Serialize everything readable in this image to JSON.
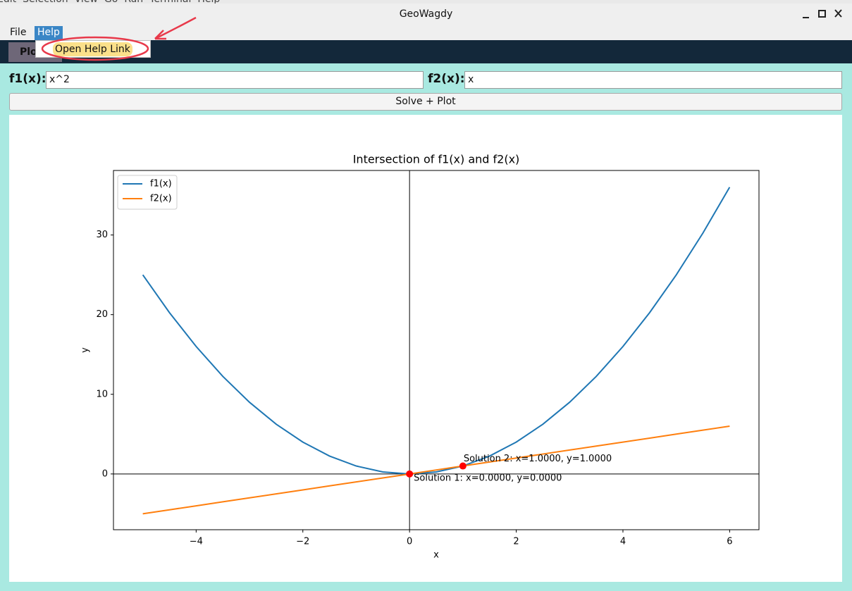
{
  "background_menu": [
    "Edit",
    "Selection",
    "View",
    "Go",
    "Run",
    "Terminal",
    "Help"
  ],
  "window": {
    "title": "GeoWagdy"
  },
  "menu": [
    "File",
    "Help"
  ],
  "dropdown": [
    "Open Help Link"
  ],
  "tab": "Plot",
  "inputs": [
    {
      "label": "f1(x):",
      "value": "x^2"
    },
    {
      "label": "f2(x):",
      "value": "x"
    }
  ],
  "button": "Solve + Plot",
  "chart_data": {
    "type": "line",
    "title": "Intersection of f1(x) and f2(x)",
    "x_label": "x",
    "y_label": "y",
    "x": [
      -5,
      -4.5,
      -4,
      -3.5,
      -3,
      -2.5,
      -2,
      -1.5,
      -1,
      -0.5,
      0,
      0.5,
      1,
      1.5,
      2,
      2.5,
      3,
      3.5,
      4,
      4.5,
      5,
      5.5,
      6
    ],
    "series": [
      {
        "name": "f1(x)",
        "color": "#1f77b4",
        "values": [
          25,
          20.25,
          16,
          12.25,
          9,
          6.25,
          4,
          2.25,
          1,
          0.25,
          0,
          0.25,
          1,
          2.25,
          4,
          6.25,
          9,
          12.25,
          16,
          20.25,
          25,
          30.25,
          36
        ]
      },
      {
        "name": "f2(x)",
        "color": "#ff7f0e",
        "values": [
          -5,
          -4.5,
          -4,
          -3.5,
          -3,
          -2.5,
          -2,
          -1.5,
          -1,
          -0.5,
          0,
          0.5,
          1,
          1.5,
          2,
          2.5,
          3,
          3.5,
          4,
          4.5,
          5,
          5.5,
          6
        ]
      }
    ],
    "solutions": [
      {
        "x": 0,
        "y": 0,
        "label": "Solution 1: x=0.0000, y=0.0000"
      },
      {
        "x": 1,
        "y": 1,
        "label": "Solution 2: x=1.0000, y=1.0000"
      }
    ],
    "solution_color": "#ff0000",
    "xlim": [
      -5.55,
      6.55
    ],
    "ylim": [
      -7,
      38.1
    ],
    "xticks": [
      {
        "value": -4,
        "label": "−4"
      },
      {
        "value": -2,
        "label": "−2"
      },
      0,
      2,
      4,
      6
    ],
    "yticks": [
      0,
      10,
      20,
      30
    ],
    "zero_lines": true,
    "grid": false,
    "legend": "upper left"
  }
}
